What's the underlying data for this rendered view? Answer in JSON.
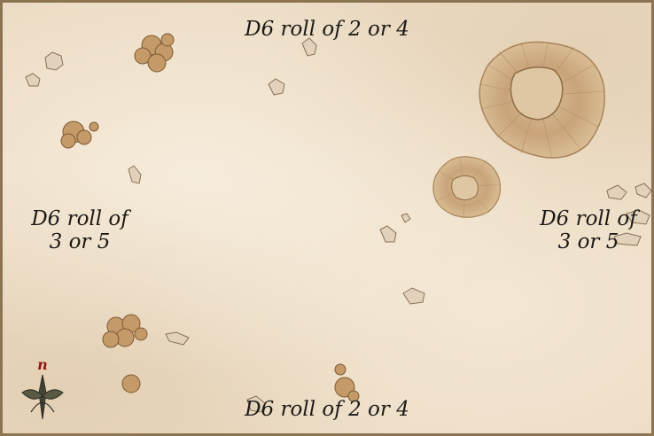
{
  "deployment_zones": {
    "top": "D6 roll of 2 or 4",
    "bottom": "D6 roll of 2 or 4",
    "left_line1": "D6 roll of",
    "left_line2": "3 or 5",
    "right_line1": "D6 roll of",
    "right_line2": "3 or 5"
  },
  "compass": {
    "north_letter": "n",
    "north_color": "#8b1a12"
  },
  "colors": {
    "parchment": "#ecdcc4",
    "border": "#8c7352",
    "text": "#1c1a17",
    "terrain": "#b99164"
  },
  "terrain_icons": [
    "crater-icon",
    "rock-cluster-icon",
    "rubble-icon",
    "compass-rose-icon"
  ]
}
